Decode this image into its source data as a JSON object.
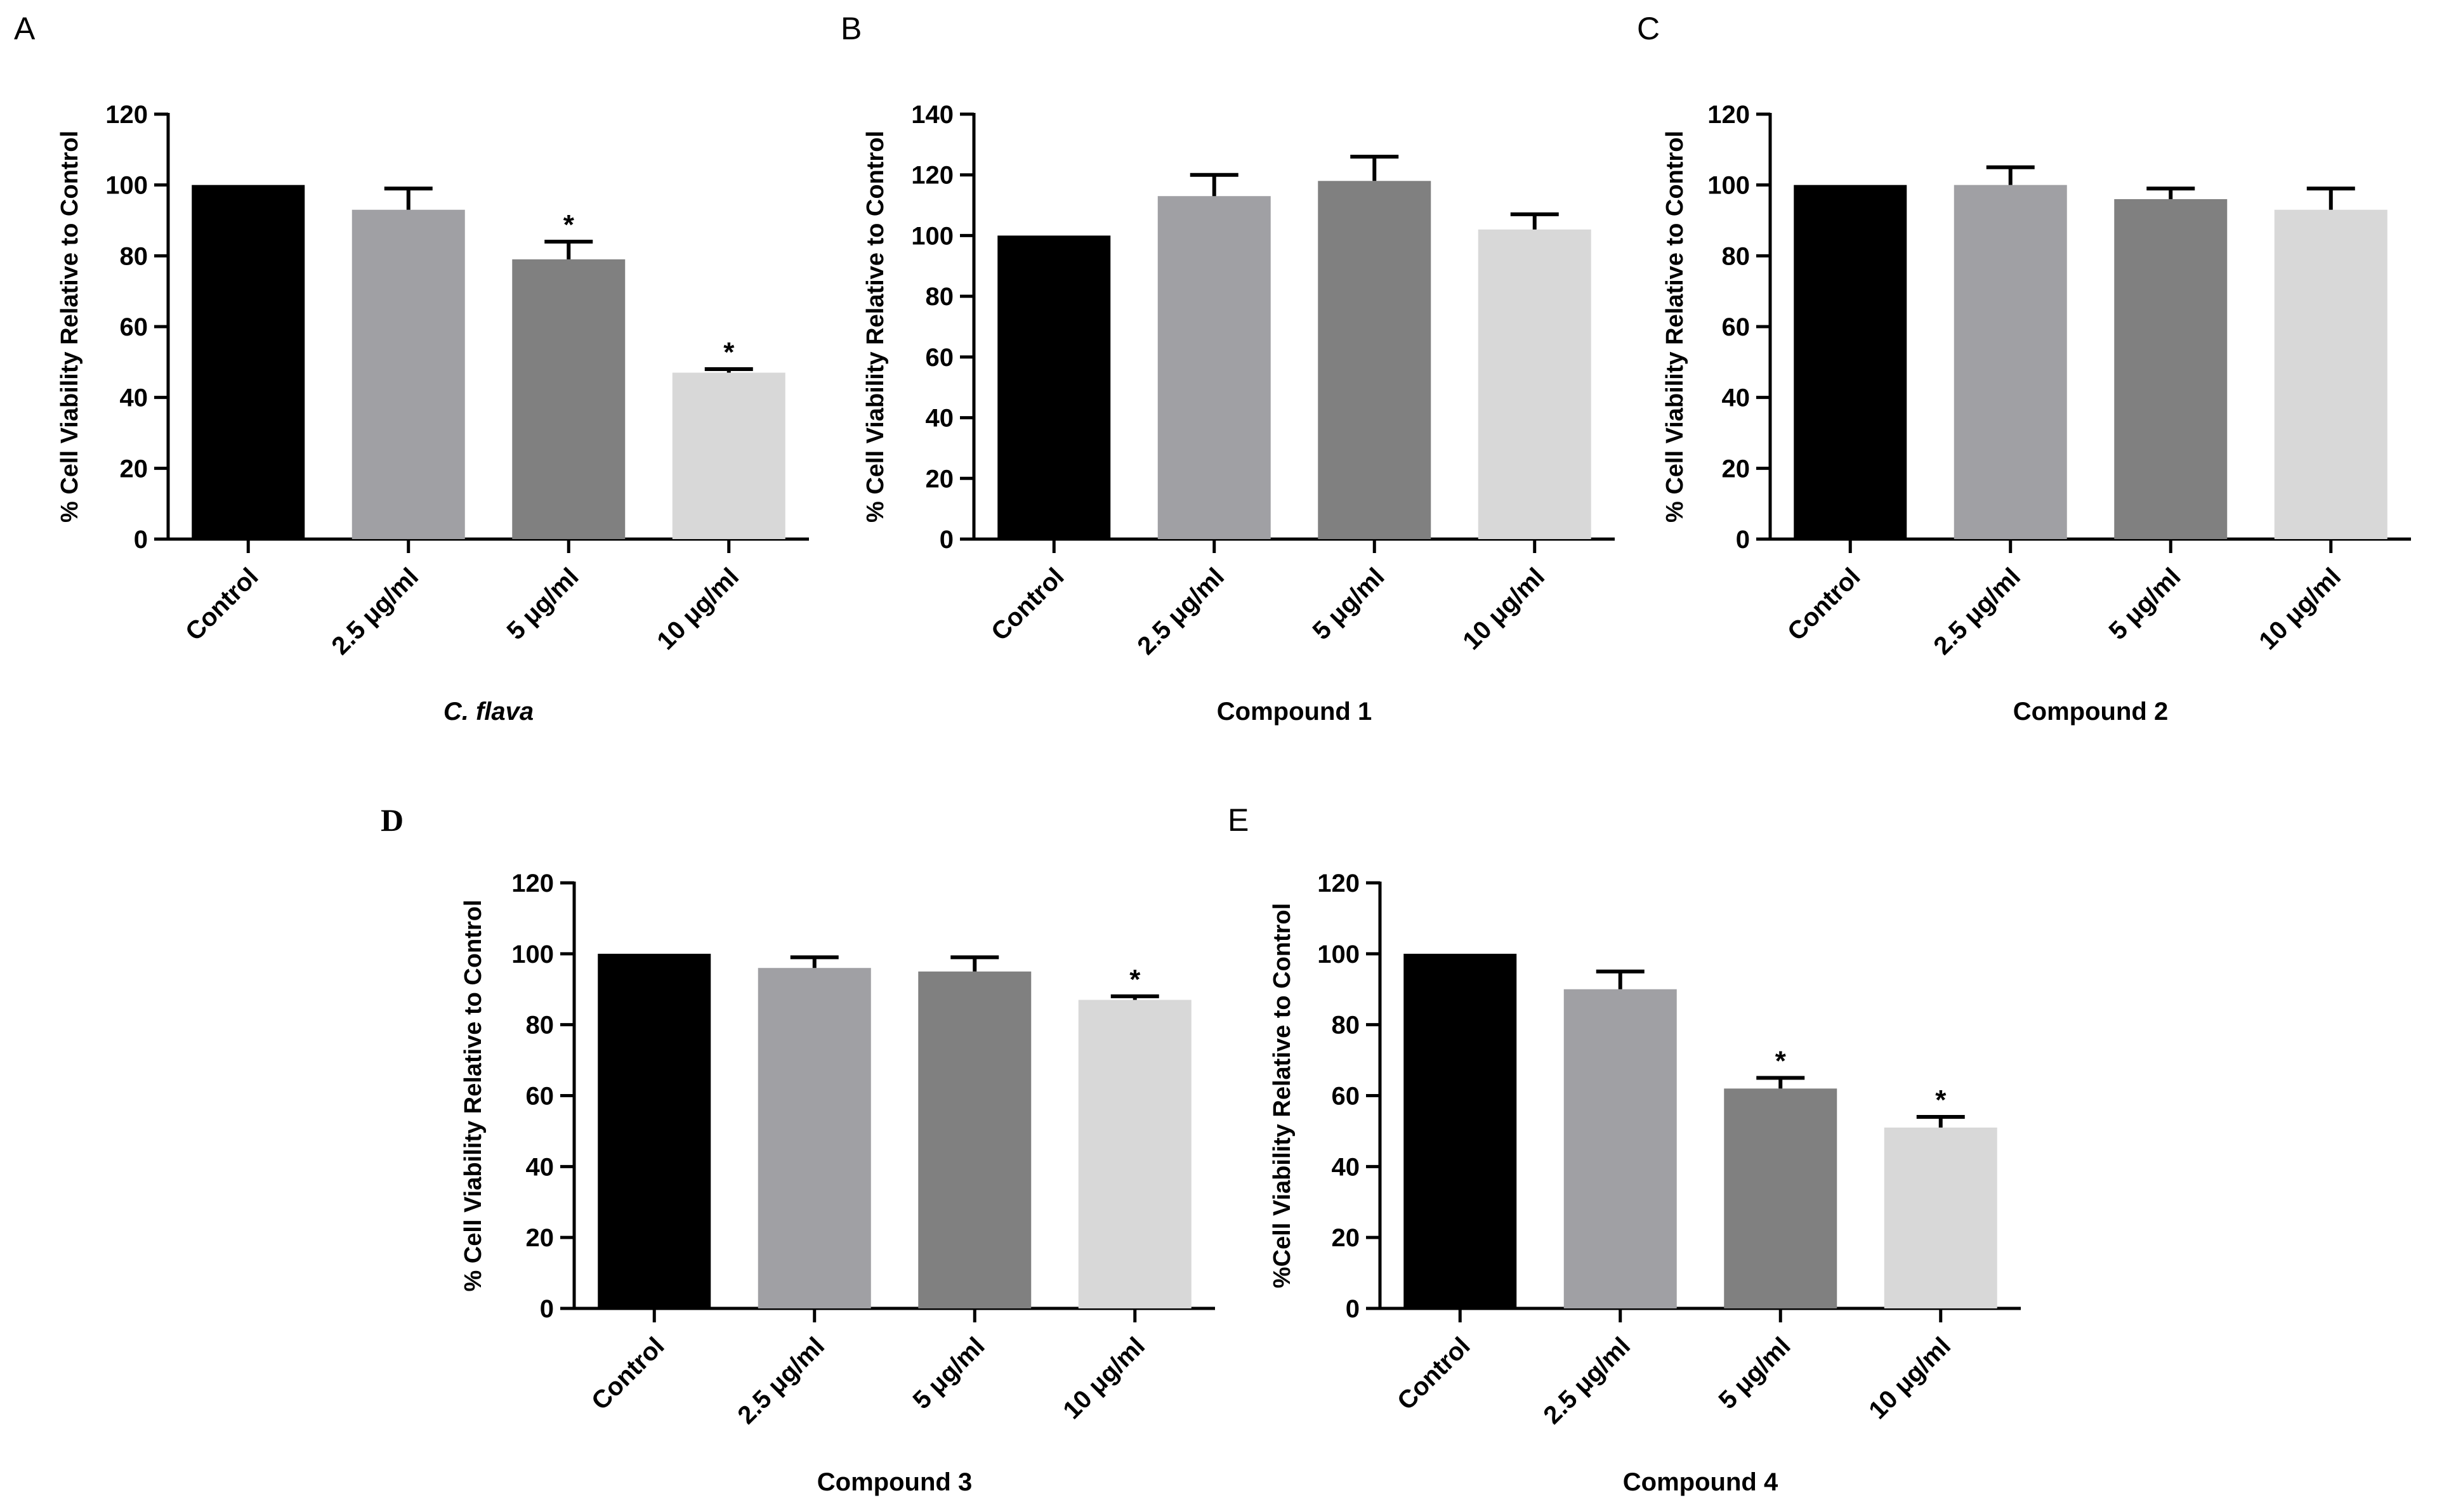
{
  "colors": {
    "control": "#000000",
    "dose_2_5": "#a0a0a4",
    "dose_5": "#808080",
    "dose_10": "#d8d8d8",
    "axis": "#000000"
  },
  "chart_data": [
    {
      "panel": "A",
      "type": "bar",
      "categories": [
        "Control",
        "2.5 μg/ml",
        "5 μg/ml",
        "10 μg/ml"
      ],
      "values": [
        100,
        93,
        79,
        47
      ],
      "error": [
        0,
        6,
        5,
        1
      ],
      "significant": [
        false,
        false,
        true,
        true
      ],
      "significance_marker": "*",
      "xlabel": "C. flava",
      "xlabel_italic": true,
      "ylabel": "% Cell Viability Relative to Control",
      "ylim": [
        0,
        120
      ],
      "yticks": [
        0,
        20,
        40,
        60,
        80,
        100,
        120
      ],
      "grid": false,
      "legend": "none"
    },
    {
      "panel": "B",
      "type": "bar",
      "categories": [
        "Control",
        "2.5 μg/ml",
        "5 μg/ml",
        "10 μg/ml"
      ],
      "values": [
        100,
        113,
        118,
        102
      ],
      "error": [
        0,
        7,
        8,
        5
      ],
      "significant": [
        false,
        false,
        false,
        false
      ],
      "significance_marker": "*",
      "xlabel": "Compound 1",
      "xlabel_italic": false,
      "ylabel": "% Cell Viability Relative to Control",
      "ylim": [
        0,
        140
      ],
      "yticks": [
        0,
        20,
        40,
        60,
        80,
        100,
        120,
        140
      ],
      "grid": false,
      "legend": "none"
    },
    {
      "panel": "C",
      "type": "bar",
      "categories": [
        "Control",
        "2.5 μg/ml",
        "5 μg/ml",
        "10 μg/ml"
      ],
      "values": [
        100,
        100,
        96,
        93
      ],
      "error": [
        0,
        5,
        3,
        6
      ],
      "significant": [
        false,
        false,
        false,
        false
      ],
      "significance_marker": "*",
      "xlabel": "Compound 2",
      "xlabel_italic": false,
      "ylabel": "% Cell Viability Relative to Control",
      "ylim": [
        0,
        120
      ],
      "yticks": [
        0,
        20,
        40,
        60,
        80,
        100,
        120
      ],
      "grid": false,
      "legend": "none"
    },
    {
      "panel": "D",
      "type": "bar",
      "categories": [
        "Control",
        "2.5 μg/ml",
        "5 μg/ml",
        "10 μg/ml"
      ],
      "values": [
        100,
        96,
        95,
        87
      ],
      "error": [
        0,
        3,
        4,
        1
      ],
      "significant": [
        false,
        false,
        false,
        true
      ],
      "significance_marker": "*",
      "xlabel": "Compound 3",
      "xlabel_italic": false,
      "ylabel": "% Cell Viability Relative to Control",
      "ylim": [
        0,
        120
      ],
      "yticks": [
        0,
        20,
        40,
        60,
        80,
        100,
        120
      ],
      "grid": false,
      "legend": "none"
    },
    {
      "panel": "E",
      "type": "bar",
      "categories": [
        "Control",
        "2.5 μg/ml",
        "5 μg/ml",
        "10 μg/ml"
      ],
      "values": [
        100,
        90,
        62,
        51
      ],
      "error": [
        0,
        5,
        3,
        3
      ],
      "significant": [
        false,
        false,
        true,
        true
      ],
      "significance_marker": "*",
      "xlabel": "Compound 4",
      "xlabel_italic": false,
      "ylabel": "%Cell Viability Relative to Control",
      "ylim": [
        0,
        120
      ],
      "yticks": [
        0,
        20,
        40,
        60,
        80,
        100,
        120
      ],
      "grid": false,
      "legend": "none"
    }
  ]
}
